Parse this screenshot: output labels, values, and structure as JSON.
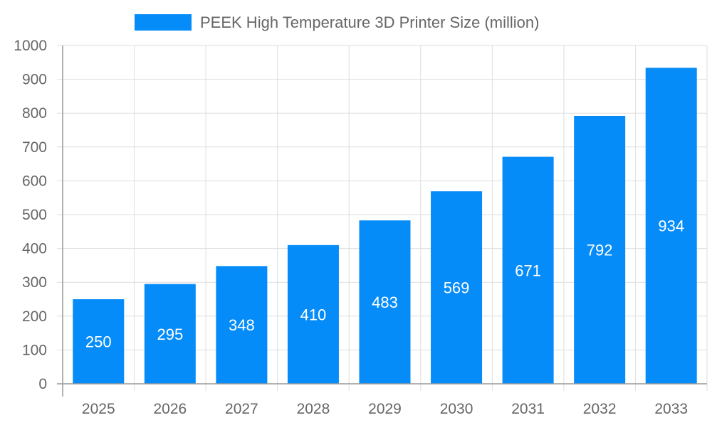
{
  "chart_data": {
    "type": "bar",
    "title": "",
    "xlabel": "",
    "ylabel": "",
    "categories": [
      "2025",
      "2026",
      "2027",
      "2028",
      "2029",
      "2030",
      "2031",
      "2032",
      "2033"
    ],
    "series": [
      {
        "name": "PEEK High Temperature 3D Printer Size (million)",
        "values": [
          250,
          295,
          348,
          410,
          483,
          569,
          671,
          792,
          934
        ],
        "color": "#058cf9"
      }
    ],
    "ylim": [
      0,
      1000
    ],
    "yticks": [
      0,
      100,
      200,
      300,
      400,
      500,
      600,
      700,
      800,
      900,
      1000
    ],
    "grid": true,
    "legend": "top-center",
    "data_labels": true
  }
}
